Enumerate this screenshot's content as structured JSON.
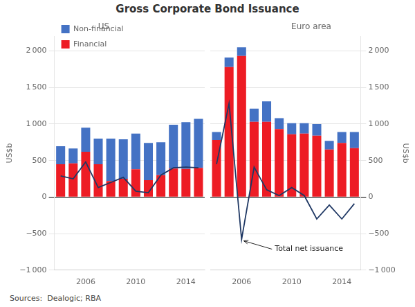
{
  "chart_data": [
    {
      "type": "bar",
      "title": "Gross Corporate Bond Issuance",
      "subtitle": "US",
      "ylabel": "US$b",
      "categories": [
        null,
        null,
        "2006",
        null,
        null,
        null,
        "2010",
        null,
        null,
        null,
        "2014",
        null
      ],
      "series": [
        {
          "name": "Financial",
          "color": "#ED1C24",
          "values": [
            450,
            460,
            620,
            450,
            220,
            250,
            380,
            230,
            300,
            390,
            385,
            400
          ]
        },
        {
          "name": "Non-financial",
          "color": "#4472C4",
          "values": [
            245,
            205,
            330,
            350,
            580,
            540,
            490,
            510,
            450,
            600,
            640,
            670
          ]
        },
        {
          "type": "line",
          "color": "#1F3864",
          "values": [
            290,
            250,
            480,
            130,
            200,
            270,
            80,
            60,
            300,
            400,
            410,
            400
          ]
        }
      ],
      "stacked": true,
      "ylim": [
        -1000,
        2200
      ],
      "yticks": [
        {
          "value": -1000,
          "label": "−1 000"
        },
        {
          "value": -500,
          "label": "−500"
        },
        0,
        500,
        {
          "value": 1000,
          "label": "1 000"
        },
        {
          "value": 1500,
          "label": "1 500"
        },
        {
          "value": 2000,
          "label": "2 000"
        }
      ],
      "grid": "y",
      "legend": "upper left",
      "annotations": [
        "Sources:  Dealogic; RBA"
      ]
    },
    {
      "type": "bar",
      "subtitle": "Euro area",
      "ylabel": "US$b",
      "categories": [
        null,
        null,
        "2006",
        null,
        null,
        null,
        "2010",
        null,
        null,
        null,
        "2014",
        null
      ],
      "series": [
        {
          "name": "Financial",
          "color": "#ED1C24",
          "values": [
            780,
            1780,
            1930,
            1030,
            1030,
            930,
            860,
            870,
            840,
            650,
            740,
            670
          ]
        },
        {
          "name": "Non-financial",
          "color": "#4472C4",
          "values": [
            110,
            130,
            120,
            180,
            280,
            150,
            150,
            140,
            160,
            120,
            150,
            220
          ]
        },
        {
          "type": "line",
          "color": "#1F3864",
          "values": [
            450,
            1280,
            -580,
            410,
            100,
            20,
            130,
            20,
            -300,
            -110,
            -300,
            -90
          ]
        }
      ],
      "stacked": true,
      "ylim": [
        -1000,
        2200
      ],
      "yticks": [
        {
          "value": -1000,
          "label": "−1 000"
        },
        {
          "value": -500,
          "label": "−500"
        },
        0,
        500,
        {
          "value": 1000,
          "label": "1 000"
        },
        {
          "value": 1500,
          "label": "1 500"
        },
        {
          "value": 2000,
          "label": "2 000"
        }
      ],
      "grid": "y",
      "annotations": [
        {
          "text": "Total net issuance",
          "x": "2006",
          "y": -580
        }
      ]
    }
  ]
}
